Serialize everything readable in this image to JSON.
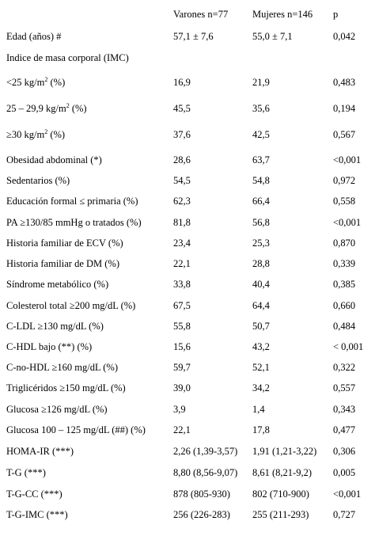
{
  "table": {
    "header": [
      "Varones n=77",
      "Mujeres n=146",
      "p"
    ],
    "rows": [
      {
        "label": "Edad (años) #",
        "values": [
          "57,1 ± 7,6",
          "55,0 ± 7,1",
          "0,042"
        ]
      },
      {
        "label": "Indice de masa corporal (IMC)",
        "values": []
      },
      {
        "label": "<25 kg/m",
        "sup": "2",
        "label_end": " (%)",
        "values": [
          "16,9",
          "21,9",
          "0,483"
        ]
      },
      {
        "label": "25 – 29,9 kg/m",
        "sup": "2",
        "label_end": " (%)",
        "values": [
          "45,5",
          "35,6",
          "0,194"
        ]
      },
      {
        "label": "≥30 kg/m",
        "sup": "2",
        "label_end": " (%)",
        "values": [
          "37,6",
          "42,5",
          "0,567"
        ]
      },
      {
        "label": "Obesidad abdominal (*)",
        "values": [
          "28,6",
          "63,7",
          "<0,001"
        ]
      },
      {
        "label": "Sedentarios (%)",
        "values": [
          "54,5",
          "54,8",
          "0,972"
        ]
      },
      {
        "label": "Educación formal ≤ primaria (%)",
        "values": [
          "62,3",
          "66,4",
          "0,558"
        ]
      },
      {
        "label": "PA ≥130/85 mmHg o tratados (%)",
        "values": [
          "81,8",
          "56,8",
          "<0,001"
        ]
      },
      {
        "label": "Historia familiar de ECV (%)",
        "values": [
          "23,4",
          "25,3",
          "0,870"
        ]
      },
      {
        "label": "Historia familiar de DM (%)",
        "values": [
          "22,1",
          "28,8",
          "0,339"
        ]
      },
      {
        "label": "Síndrome metabólico (%)",
        "values": [
          "33,8",
          "40,4",
          "0,385"
        ]
      },
      {
        "label": "Colesterol total ≥200 mg/dL (%)",
        "values": [
          "67,5",
          "64,4",
          "0,660"
        ]
      },
      {
        "label": "C-LDL ≥130 mg/dL (%)",
        "values": [
          "55,8",
          "50,7",
          "0,484"
        ]
      },
      {
        "label": "C-HDL bajo (**) (%)",
        "values": [
          "15,6",
          "43,2",
          "< 0,001"
        ]
      },
      {
        "label": "C-no-HDL ≥160 mg/dL (%)",
        "values": [
          "59,7",
          "52,1",
          "0,322"
        ]
      },
      {
        "label": "Triglicéridos ≥150 mg/dL (%)",
        "values": [
          "39,0",
          "34,2",
          "0,557"
        ]
      },
      {
        "label": "Glucosa ≥126 mg/dL (%)",
        "values": [
          "3,9",
          "1,4",
          "0,343"
        ]
      },
      {
        "label": "Glucosa 100 – 125 mg/dL (##) (%)",
        "values": [
          "22,1",
          "17,8",
          "0,477"
        ]
      },
      {
        "label": "HOMA-IR (***)",
        "values": [
          "2,26 (1,39-3,57)",
          "1,91 (1,21-3,22)",
          "0,306"
        ]
      },
      {
        "label": "T-G (***)",
        "values": [
          "8,80 (8,56-9,07)",
          "8,61 (8,21-9,2)",
          "0,005"
        ]
      },
      {
        "label": "T-G-CC (***)",
        "values": [
          "878 (805-930)",
          "802 (710-900)",
          "<0,001"
        ]
      },
      {
        "label": "T-G-IMC (***)",
        "values": [
          "256 (226-283)",
          "255 (211-293)",
          "0,727"
        ]
      }
    ]
  }
}
